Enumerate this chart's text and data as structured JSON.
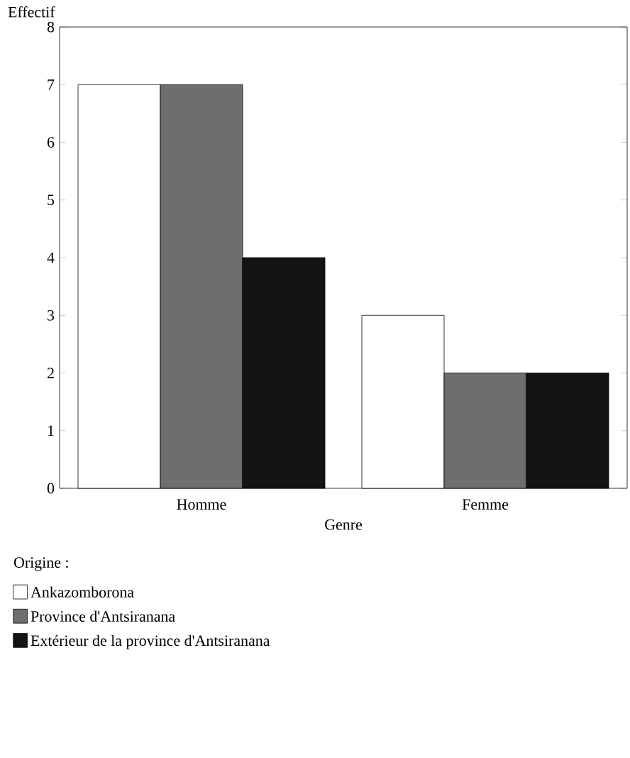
{
  "chart_data": {
    "type": "bar",
    "xlabel": "Genre",
    "ylabel": "Effectif",
    "legend_title": "Origine :",
    "categories": [
      "Homme",
      "Femme"
    ],
    "series": [
      {
        "name": "Ankazomborona",
        "color": "#ffffff",
        "values": [
          7,
          3
        ]
      },
      {
        "name": "Province d'Antsiranana",
        "color": "#6e6e6e",
        "values": [
          7,
          2
        ]
      },
      {
        "name": "Extérieur de la province d'Antsiranana",
        "color": "#141414",
        "values": [
          4,
          2
        ]
      }
    ],
    "ylim": [
      0,
      8
    ],
    "yticks": [
      0,
      1,
      2,
      3,
      4,
      5,
      6,
      7,
      8
    ],
    "grid": false,
    "legend": "bottom"
  }
}
